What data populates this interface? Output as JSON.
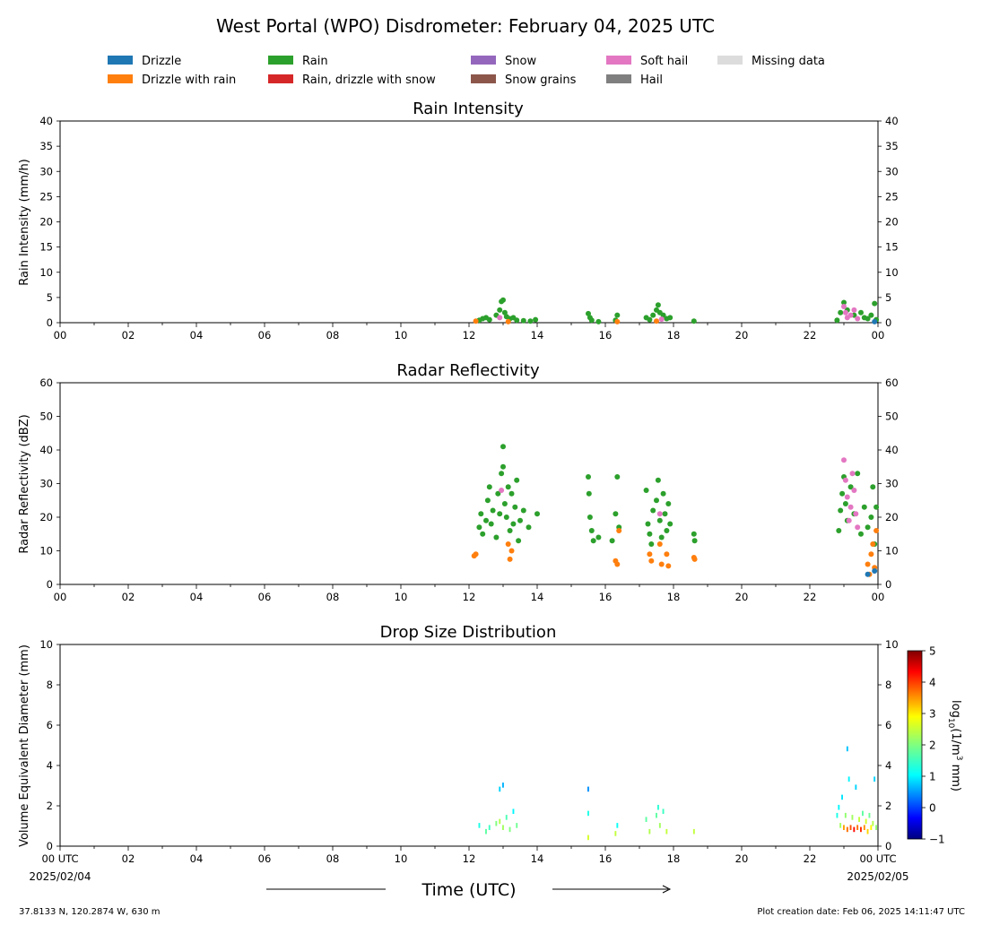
{
  "figure": {
    "title": "West Portal (WPO) Disdrometer: February 04, 2025 UTC",
    "location": "37.8133 N, 120.2874 W, 630 m",
    "creation": "Plot creation date: Feb 06, 2025 14:11:47 UTC",
    "time_label": "Time (UTC)"
  },
  "legend": [
    {
      "label": "Drizzle",
      "color": "#1f77b4"
    },
    {
      "label": "Drizzle with rain",
      "color": "#ff7f0e"
    },
    {
      "label": "Rain",
      "color": "#2ca02c"
    },
    {
      "label": "Rain, drizzle with snow",
      "color": "#d62728"
    },
    {
      "label": "Snow",
      "color": "#9467bd"
    },
    {
      "label": "Snow grains",
      "color": "#8c564b"
    },
    {
      "label": "Soft hail",
      "color": "#e377c2"
    },
    {
      "label": "Hail",
      "color": "#7f7f7f"
    },
    {
      "label": "Missing data",
      "color": "#dcdcdc"
    }
  ],
  "chart_data": [
    {
      "type": "scatter",
      "title": "Rain Intensity",
      "ylabel": "Rain Intensity (mm/h)",
      "xlim": [
        0,
        24
      ],
      "ylim": [
        0,
        40
      ],
      "yticks": [
        0,
        5,
        10,
        15,
        20,
        25,
        30,
        35,
        40
      ],
      "xtick_labels": [
        "00",
        "02",
        "04",
        "06",
        "08",
        "10",
        "12",
        "14",
        "16",
        "18",
        "20",
        "22",
        "00"
      ],
      "series": [
        {
          "name": "Rain",
          "color": "#2ca02c",
          "points": [
            [
              12.3,
              0.5
            ],
            [
              12.4,
              0.8
            ],
            [
              12.5,
              1.0
            ],
            [
              12.6,
              0.6
            ],
            [
              12.8,
              1.5
            ],
            [
              12.9,
              2.5
            ],
            [
              12.95,
              4.2
            ],
            [
              13.0,
              4.5
            ],
            [
              13.05,
              2.0
            ],
            [
              13.1,
              1.2
            ],
            [
              13.2,
              0.8
            ],
            [
              13.3,
              1.0
            ],
            [
              13.4,
              0.5
            ],
            [
              13.6,
              0.4
            ],
            [
              13.8,
              0.3
            ],
            [
              13.95,
              0.6
            ],
            [
              15.5,
              1.8
            ],
            [
              15.55,
              1.0
            ],
            [
              15.6,
              0.5
            ],
            [
              15.8,
              0.2
            ],
            [
              16.3,
              0.5
            ],
            [
              16.35,
              1.5
            ],
            [
              17.2,
              1.0
            ],
            [
              17.3,
              0.6
            ],
            [
              17.4,
              1.5
            ],
            [
              17.5,
              2.5
            ],
            [
              17.55,
              3.5
            ],
            [
              17.6,
              2.0
            ],
            [
              17.7,
              1.5
            ],
            [
              17.8,
              0.8
            ],
            [
              17.9,
              1.0
            ],
            [
              18.6,
              0.3
            ],
            [
              22.8,
              0.5
            ],
            [
              22.9,
              2.0
            ],
            [
              23.0,
              4.0
            ],
            [
              23.1,
              2.5
            ],
            [
              23.3,
              1.5
            ],
            [
              23.5,
              2.0
            ],
            [
              23.6,
              1.0
            ],
            [
              23.7,
              0.8
            ],
            [
              23.8,
              1.5
            ],
            [
              23.9,
              3.8
            ],
            [
              23.95,
              0.6
            ]
          ]
        },
        {
          "name": "Drizzle with rain",
          "color": "#ff7f0e",
          "points": [
            [
              12.2,
              0.3
            ],
            [
              13.15,
              0.2
            ],
            [
              16.35,
              0.2
            ],
            [
              17.5,
              0.3
            ]
          ]
        },
        {
          "name": "Soft hail",
          "color": "#e377c2",
          "points": [
            [
              12.9,
              1.0
            ],
            [
              17.65,
              0.7
            ],
            [
              23.0,
              3.2
            ],
            [
              23.05,
              2.0
            ],
            [
              23.1,
              1.0
            ],
            [
              23.2,
              1.5
            ],
            [
              23.3,
              2.5
            ],
            [
              23.4,
              0.8
            ]
          ]
        },
        {
          "name": "Drizzle",
          "color": "#1f77b4",
          "points": [
            [
              23.9,
              0.2
            ]
          ]
        }
      ]
    },
    {
      "type": "scatter",
      "title": "Radar Reflectivity",
      "ylabel": "Radar Reflectivity (dBZ)",
      "xlim": [
        0,
        24
      ],
      "ylim": [
        0,
        60
      ],
      "yticks": [
        0,
        10,
        20,
        30,
        40,
        50,
        60
      ],
      "xtick_labels": [
        "00",
        "02",
        "04",
        "06",
        "08",
        "10",
        "12",
        "14",
        "16",
        "18",
        "20",
        "22",
        "00"
      ],
      "series": [
        {
          "name": "Rain",
          "color": "#2ca02c",
          "points": [
            [
              12.3,
              17
            ],
            [
              12.35,
              21
            ],
            [
              12.4,
              15
            ],
            [
              12.5,
              19
            ],
            [
              12.55,
              25
            ],
            [
              12.6,
              29
            ],
            [
              12.65,
              18
            ],
            [
              12.7,
              22
            ],
            [
              12.8,
              14
            ],
            [
              12.85,
              27
            ],
            [
              12.9,
              21
            ],
            [
              12.95,
              33
            ],
            [
              13.0,
              41
            ],
            [
              13.0,
              35
            ],
            [
              13.05,
              24
            ],
            [
              13.1,
              20
            ],
            [
              13.15,
              29
            ],
            [
              13.2,
              16
            ],
            [
              13.25,
              27
            ],
            [
              13.3,
              18
            ],
            [
              13.35,
              23
            ],
            [
              13.4,
              31
            ],
            [
              13.45,
              13
            ],
            [
              13.5,
              19
            ],
            [
              13.6,
              22
            ],
            [
              13.75,
              17
            ],
            [
              14.0,
              21
            ],
            [
              15.5,
              32
            ],
            [
              15.52,
              27
            ],
            [
              15.55,
              20
            ],
            [
              15.6,
              16
            ],
            [
              15.65,
              13
            ],
            [
              15.8,
              14
            ],
            [
              16.2,
              13
            ],
            [
              16.3,
              21
            ],
            [
              16.35,
              32
            ],
            [
              16.4,
              17
            ],
            [
              17.2,
              28
            ],
            [
              17.25,
              18
            ],
            [
              17.3,
              15
            ],
            [
              17.35,
              12
            ],
            [
              17.4,
              22
            ],
            [
              17.5,
              25
            ],
            [
              17.55,
              31
            ],
            [
              17.6,
              19
            ],
            [
              17.65,
              14
            ],
            [
              17.7,
              27
            ],
            [
              17.75,
              21
            ],
            [
              17.8,
              16
            ],
            [
              17.85,
              24
            ],
            [
              17.9,
              18
            ],
            [
              18.6,
              15
            ],
            [
              18.62,
              13
            ],
            [
              22.85,
              16
            ],
            [
              22.9,
              22
            ],
            [
              22.95,
              27
            ],
            [
              23.0,
              32
            ],
            [
              23.05,
              24
            ],
            [
              23.1,
              19
            ],
            [
              23.2,
              29
            ],
            [
              23.3,
              21
            ],
            [
              23.4,
              33
            ],
            [
              23.5,
              15
            ],
            [
              23.6,
              23
            ],
            [
              23.7,
              17
            ],
            [
              23.8,
              20
            ],
            [
              23.85,
              29
            ],
            [
              23.9,
              12
            ],
            [
              23.95,
              23
            ]
          ]
        },
        {
          "name": "Drizzle with rain",
          "color": "#ff7f0e",
          "points": [
            [
              12.15,
              8.5
            ],
            [
              12.2,
              9
            ],
            [
              13.15,
              12
            ],
            [
              13.2,
              7.5
            ],
            [
              13.25,
              10
            ],
            [
              16.3,
              7
            ],
            [
              16.35,
              6
            ],
            [
              16.4,
              16
            ],
            [
              17.3,
              9
            ],
            [
              17.35,
              7
            ],
            [
              17.6,
              12
            ],
            [
              17.65,
              6
            ],
            [
              17.8,
              9
            ],
            [
              17.85,
              5.5
            ],
            [
              18.6,
              8
            ],
            [
              18.62,
              7.5
            ],
            [
              23.7,
              6
            ],
            [
              23.75,
              3
            ],
            [
              23.8,
              9
            ],
            [
              23.85,
              12
            ],
            [
              23.9,
              5
            ],
            [
              23.95,
              16
            ]
          ]
        },
        {
          "name": "Soft hail",
          "color": "#e377c2",
          "points": [
            [
              12.95,
              28
            ],
            [
              17.6,
              21
            ],
            [
              23.0,
              37
            ],
            [
              23.05,
              31
            ],
            [
              23.1,
              26
            ],
            [
              23.15,
              19
            ],
            [
              23.2,
              23
            ],
            [
              23.25,
              33
            ],
            [
              23.3,
              28
            ],
            [
              23.35,
              21
            ],
            [
              23.4,
              17
            ]
          ]
        },
        {
          "name": "Drizzle",
          "color": "#1f77b4",
          "points": [
            [
              23.7,
              3
            ],
            [
              23.9,
              4
            ]
          ]
        }
      ]
    },
    {
      "type": "heatmap",
      "title": "Drop Size Distribution",
      "ylabel": "Volume Equivalent Diameter (mm)",
      "xlabel": "Time (UTC)",
      "xlim": [
        0,
        24
      ],
      "ylim": [
        0,
        10
      ],
      "yticks": [
        0,
        2,
        4,
        6,
        8,
        10
      ],
      "xtick_labels": [
        "00 UTC",
        "02",
        "04",
        "06",
        "08",
        "10",
        "12",
        "14",
        "16",
        "18",
        "20",
        "22",
        "00 UTC"
      ],
      "x_start_date": "2025/02/04",
      "x_end_date": "2025/02/05",
      "colorbar": {
        "label": "log10(1/m3 mm)",
        "min": -1,
        "max": 5,
        "ticks": [
          -1,
          0,
          1,
          2,
          3,
          4,
          5
        ]
      },
      "cells": [
        [
          12.3,
          0.9,
          1.4
        ],
        [
          12.5,
          0.6,
          1.8
        ],
        [
          12.6,
          0.8,
          1.6
        ],
        [
          12.8,
          1.0,
          2.0
        ],
        [
          12.9,
          1.1,
          2.3
        ],
        [
          12.9,
          2.7,
          1.0
        ],
        [
          13.0,
          0.8,
          2.2
        ],
        [
          13.0,
          2.9,
          0.8
        ],
        [
          13.1,
          1.3,
          1.7
        ],
        [
          13.2,
          0.7,
          2.0
        ],
        [
          13.3,
          1.6,
          1.2
        ],
        [
          13.4,
          0.9,
          1.9
        ],
        [
          15.5,
          0.3,
          2.5
        ],
        [
          15.5,
          1.5,
          1.4
        ],
        [
          15.5,
          2.7,
          0.6
        ],
        [
          16.3,
          0.5,
          2.4
        ],
        [
          16.35,
          0.9,
          1.3
        ],
        [
          17.2,
          1.2,
          1.8
        ],
        [
          17.3,
          0.6,
          2.3
        ],
        [
          17.5,
          1.4,
          1.8
        ],
        [
          17.55,
          1.8,
          1.5
        ],
        [
          17.6,
          0.9,
          2.2
        ],
        [
          17.7,
          1.6,
          1.6
        ],
        [
          17.8,
          0.6,
          2.4
        ],
        [
          18.6,
          0.6,
          2.4
        ],
        [
          22.8,
          1.4,
          1.4
        ],
        [
          22.85,
          1.8,
          1.2
        ],
        [
          22.9,
          0.9,
          2.2
        ],
        [
          22.95,
          2.3,
          1.1
        ],
        [
          23.0,
          0.8,
          3.3
        ],
        [
          23.05,
          1.4,
          2.1
        ],
        [
          23.1,
          0.7,
          3.6
        ],
        [
          23.1,
          4.7,
          0.9
        ],
        [
          23.15,
          3.2,
          1.2
        ],
        [
          23.2,
          0.8,
          3.8
        ],
        [
          23.25,
          1.3,
          2.2
        ],
        [
          23.3,
          0.7,
          4.2
        ],
        [
          23.35,
          2.8,
          1.0
        ],
        [
          23.4,
          0.8,
          3.6
        ],
        [
          23.45,
          1.2,
          2.4
        ],
        [
          23.5,
          0.7,
          4.0
        ],
        [
          23.55,
          1.5,
          1.8
        ],
        [
          23.6,
          0.8,
          3.4
        ],
        [
          23.65,
          1.1,
          2.5
        ],
        [
          23.7,
          0.6,
          3.0
        ],
        [
          23.75,
          1.4,
          1.9
        ],
        [
          23.8,
          0.8,
          2.8
        ],
        [
          23.85,
          1.0,
          2.3
        ],
        [
          23.9,
          3.2,
          1.0
        ],
        [
          23.95,
          0.8,
          2.1
        ]
      ]
    }
  ]
}
